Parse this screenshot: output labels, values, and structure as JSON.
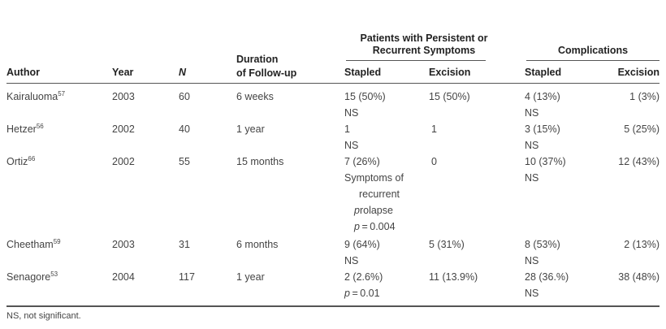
{
  "headers": {
    "author": "Author",
    "year": "Year",
    "n": "N",
    "duration_l1": "Duration",
    "duration_l2": "of Follow-up",
    "group1_l1": "Patients with Persistent or",
    "group1_l2": "Recurrent Symptoms",
    "group2": "Complications",
    "stapled1": "Stapled",
    "excision1": "Excision",
    "stapled2": "Stapled",
    "excision2": "Excision"
  },
  "rows": [
    {
      "author": "Kairaluoma",
      "ref": "57",
      "year": "2003",
      "n": "60",
      "duration": "6 weeks",
      "sympt_stapled": [
        "15 (50%)",
        "NS"
      ],
      "sympt_excision": "15 (50%)",
      "comp_stapled": [
        "4 (13%)",
        "NS"
      ],
      "comp_excision": "1 (3%)"
    },
    {
      "author": "Hetzer",
      "ref": "56",
      "year": "2002",
      "n": "40",
      "duration": "1 year",
      "sympt_stapled": [
        "1",
        "NS"
      ],
      "sympt_excision": "1",
      "comp_stapled": [
        "3 (15%)",
        "NS"
      ],
      "comp_excision": "5 (25%)"
    },
    {
      "author": "Ortiz",
      "ref": "66",
      "year": "2002",
      "n": "55",
      "duration": "15 months",
      "sympt_stapled": [
        "7 (26%)",
        "Symptoms of",
        "recurrent",
        "prolapse",
        "p = 0.004"
      ],
      "sympt_excision": "0",
      "comp_stapled": [
        "10 (37%)",
        "NS"
      ],
      "comp_excision": "12 (43%)"
    },
    {
      "author": "Cheetham",
      "ref": "59",
      "year": "2003",
      "n": "31",
      "duration": "6 months",
      "sympt_stapled": [
        "9 (64%)",
        "NS"
      ],
      "sympt_excision": "5 (31%)",
      "comp_stapled": [
        "8 (53%)",
        "NS"
      ],
      "comp_excision": "2 (13%)"
    },
    {
      "author": "Senagore",
      "ref": "53",
      "year": "2004",
      "n": "117",
      "duration": "1 year",
      "sympt_stapled": [
        "2 (2.6%)",
        "p = 0.01"
      ],
      "sympt_excision": "11 (13.9%)",
      "comp_stapled": [
        "28 (36.%)",
        "NS"
      ],
      "comp_excision": "38 (48%)"
    }
  ],
  "footnote": "NS, not significant."
}
